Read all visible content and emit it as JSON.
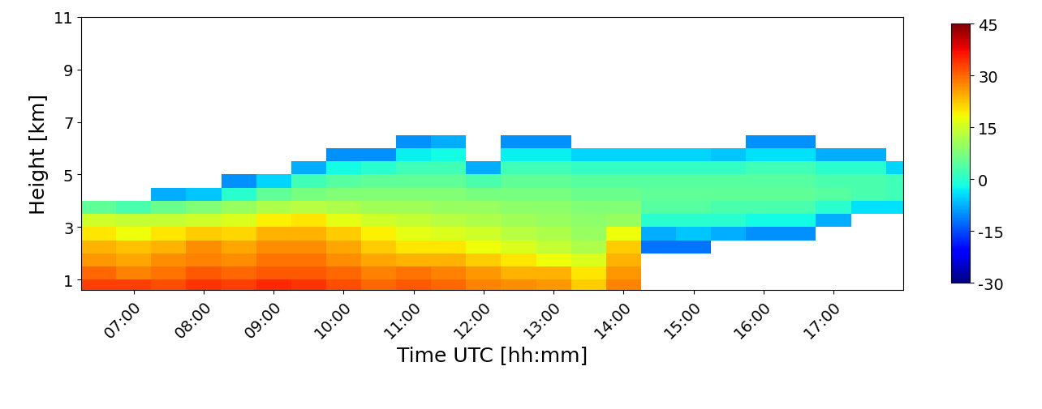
{
  "chart_data": {
    "type": "heatmap",
    "x_label": "Time UTC [hh:mm]",
    "y_label": "Height [km]",
    "xlim": [
      6.25,
      18.0
    ],
    "ylim": [
      0.6,
      11
    ],
    "xticks": [
      {
        "value": 7,
        "label": "07:00"
      },
      {
        "value": 8,
        "label": "08:00"
      },
      {
        "value": 9,
        "label": "09:00"
      },
      {
        "value": 10,
        "label": "10:00"
      },
      {
        "value": 11,
        "label": "11:00"
      },
      {
        "value": 12,
        "label": "12:00"
      },
      {
        "value": 13,
        "label": "13:00"
      },
      {
        "value": 14,
        "label": "14:00"
      },
      {
        "value": 15,
        "label": "15:00"
      },
      {
        "value": 16,
        "label": "16:00"
      },
      {
        "value": 17,
        "label": "17:00"
      }
    ],
    "yticks": [
      1,
      3,
      5,
      7,
      9,
      11
    ],
    "time_edges": [
      6.25,
      6.75,
      7.25,
      7.75,
      8.25,
      8.75,
      9.25,
      9.75,
      10.25,
      10.75,
      11.25,
      11.75,
      12.25,
      12.75,
      13.25,
      13.75,
      14.25,
      14.75,
      15.25,
      15.75,
      16.25,
      16.75,
      17.25,
      17.75,
      18.25
    ],
    "height_edges": [
      0.6,
      1.0,
      1.5,
      2.0,
      2.5,
      3.0,
      3.5,
      4.0,
      4.5,
      5.0,
      5.5,
      6.0,
      6.5,
      7.0
    ],
    "cells": [
      [
        33,
        30,
        26,
        24,
        20,
        15,
        5,
        null,
        null,
        null,
        null,
        null,
        null
      ],
      [
        33,
        28,
        25,
        23,
        18,
        14,
        3,
        null,
        null,
        null,
        null,
        null,
        null
      ],
      [
        32,
        29,
        27,
        24,
        20,
        14,
        6,
        -8,
        null,
        null,
        null,
        null,
        null
      ],
      [
        34,
        31,
        28,
        27,
        22,
        15,
        8,
        -6,
        null,
        null,
        null,
        null,
        null
      ],
      [
        33,
        30,
        27,
        25,
        21,
        16,
        10,
        0,
        -10,
        null,
        null,
        null,
        null
      ],
      [
        35,
        31,
        29,
        27,
        24,
        19,
        12,
        5,
        -5,
        null,
        null,
        null,
        null
      ],
      [
        34,
        31,
        29,
        27,
        24,
        20,
        13,
        7,
        2,
        -8,
        null,
        null,
        null
      ],
      [
        32,
        30,
        27,
        25,
        22,
        17,
        12,
        8,
        4,
        -2,
        -10,
        null,
        null
      ],
      [
        30,
        28,
        25,
        22,
        19,
        15,
        11,
        8,
        5,
        0,
        -10,
        null,
        null
      ],
      [
        31,
        29,
        24,
        20,
        17,
        14,
        11,
        8,
        5,
        2,
        -3,
        -10,
        null
      ],
      [
        30,
        28,
        24,
        20,
        16,
        13,
        10,
        8,
        5,
        2,
        -2,
        -8,
        null
      ],
      [
        28,
        26,
        22,
        18,
        15,
        12,
        10,
        7,
        3,
        -8,
        null,
        null,
        null
      ],
      [
        27,
        24,
        20,
        16,
        13,
        11,
        9,
        7,
        5,
        2,
        -3,
        -10,
        null
      ],
      [
        26,
        24,
        18,
        14,
        12,
        10,
        9,
        7,
        5,
        2,
        -3,
        -10,
        null
      ],
      [
        22,
        20,
        16,
        12,
        10,
        9,
        8,
        6,
        4,
        1,
        -5,
        null,
        null
      ],
      [
        28,
        26,
        24,
        22,
        18,
        10,
        8,
        6,
        4,
        1,
        -5,
        null,
        null
      ],
      [
        null,
        null,
        null,
        -12,
        -8,
        0,
        4,
        5,
        4,
        1,
        -5,
        null,
        null
      ],
      [
        null,
        null,
        null,
        -12,
        -6,
        0,
        4,
        5,
        4,
        1,
        -5,
        null,
        null
      ],
      [
        null,
        null,
        null,
        null,
        -8,
        0,
        3,
        5,
        4,
        1,
        -6,
        null,
        null
      ],
      [
        null,
        null,
        null,
        null,
        -10,
        -2,
        3,
        5,
        4,
        2,
        -4,
        -10,
        null
      ],
      [
        null,
        null,
        null,
        null,
        -10,
        -2,
        3,
        5,
        4,
        2,
        -4,
        -10,
        null
      ],
      [
        null,
        null,
        null,
        null,
        null,
        -8,
        0,
        4,
        3,
        0,
        -8,
        null,
        null
      ],
      [
        null,
        null,
        null,
        null,
        null,
        null,
        -4,
        3,
        3,
        0,
        -8,
        null,
        null
      ],
      [
        null,
        null,
        null,
        null,
        null,
        null,
        -4,
        2,
        2,
        -5,
        null,
        null,
        null
      ]
    ],
    "colorbar_range": [
      -30,
      45
    ],
    "colorbar_ticks": [
      -30,
      -15,
      0,
      15,
      30,
      45
    ]
  }
}
